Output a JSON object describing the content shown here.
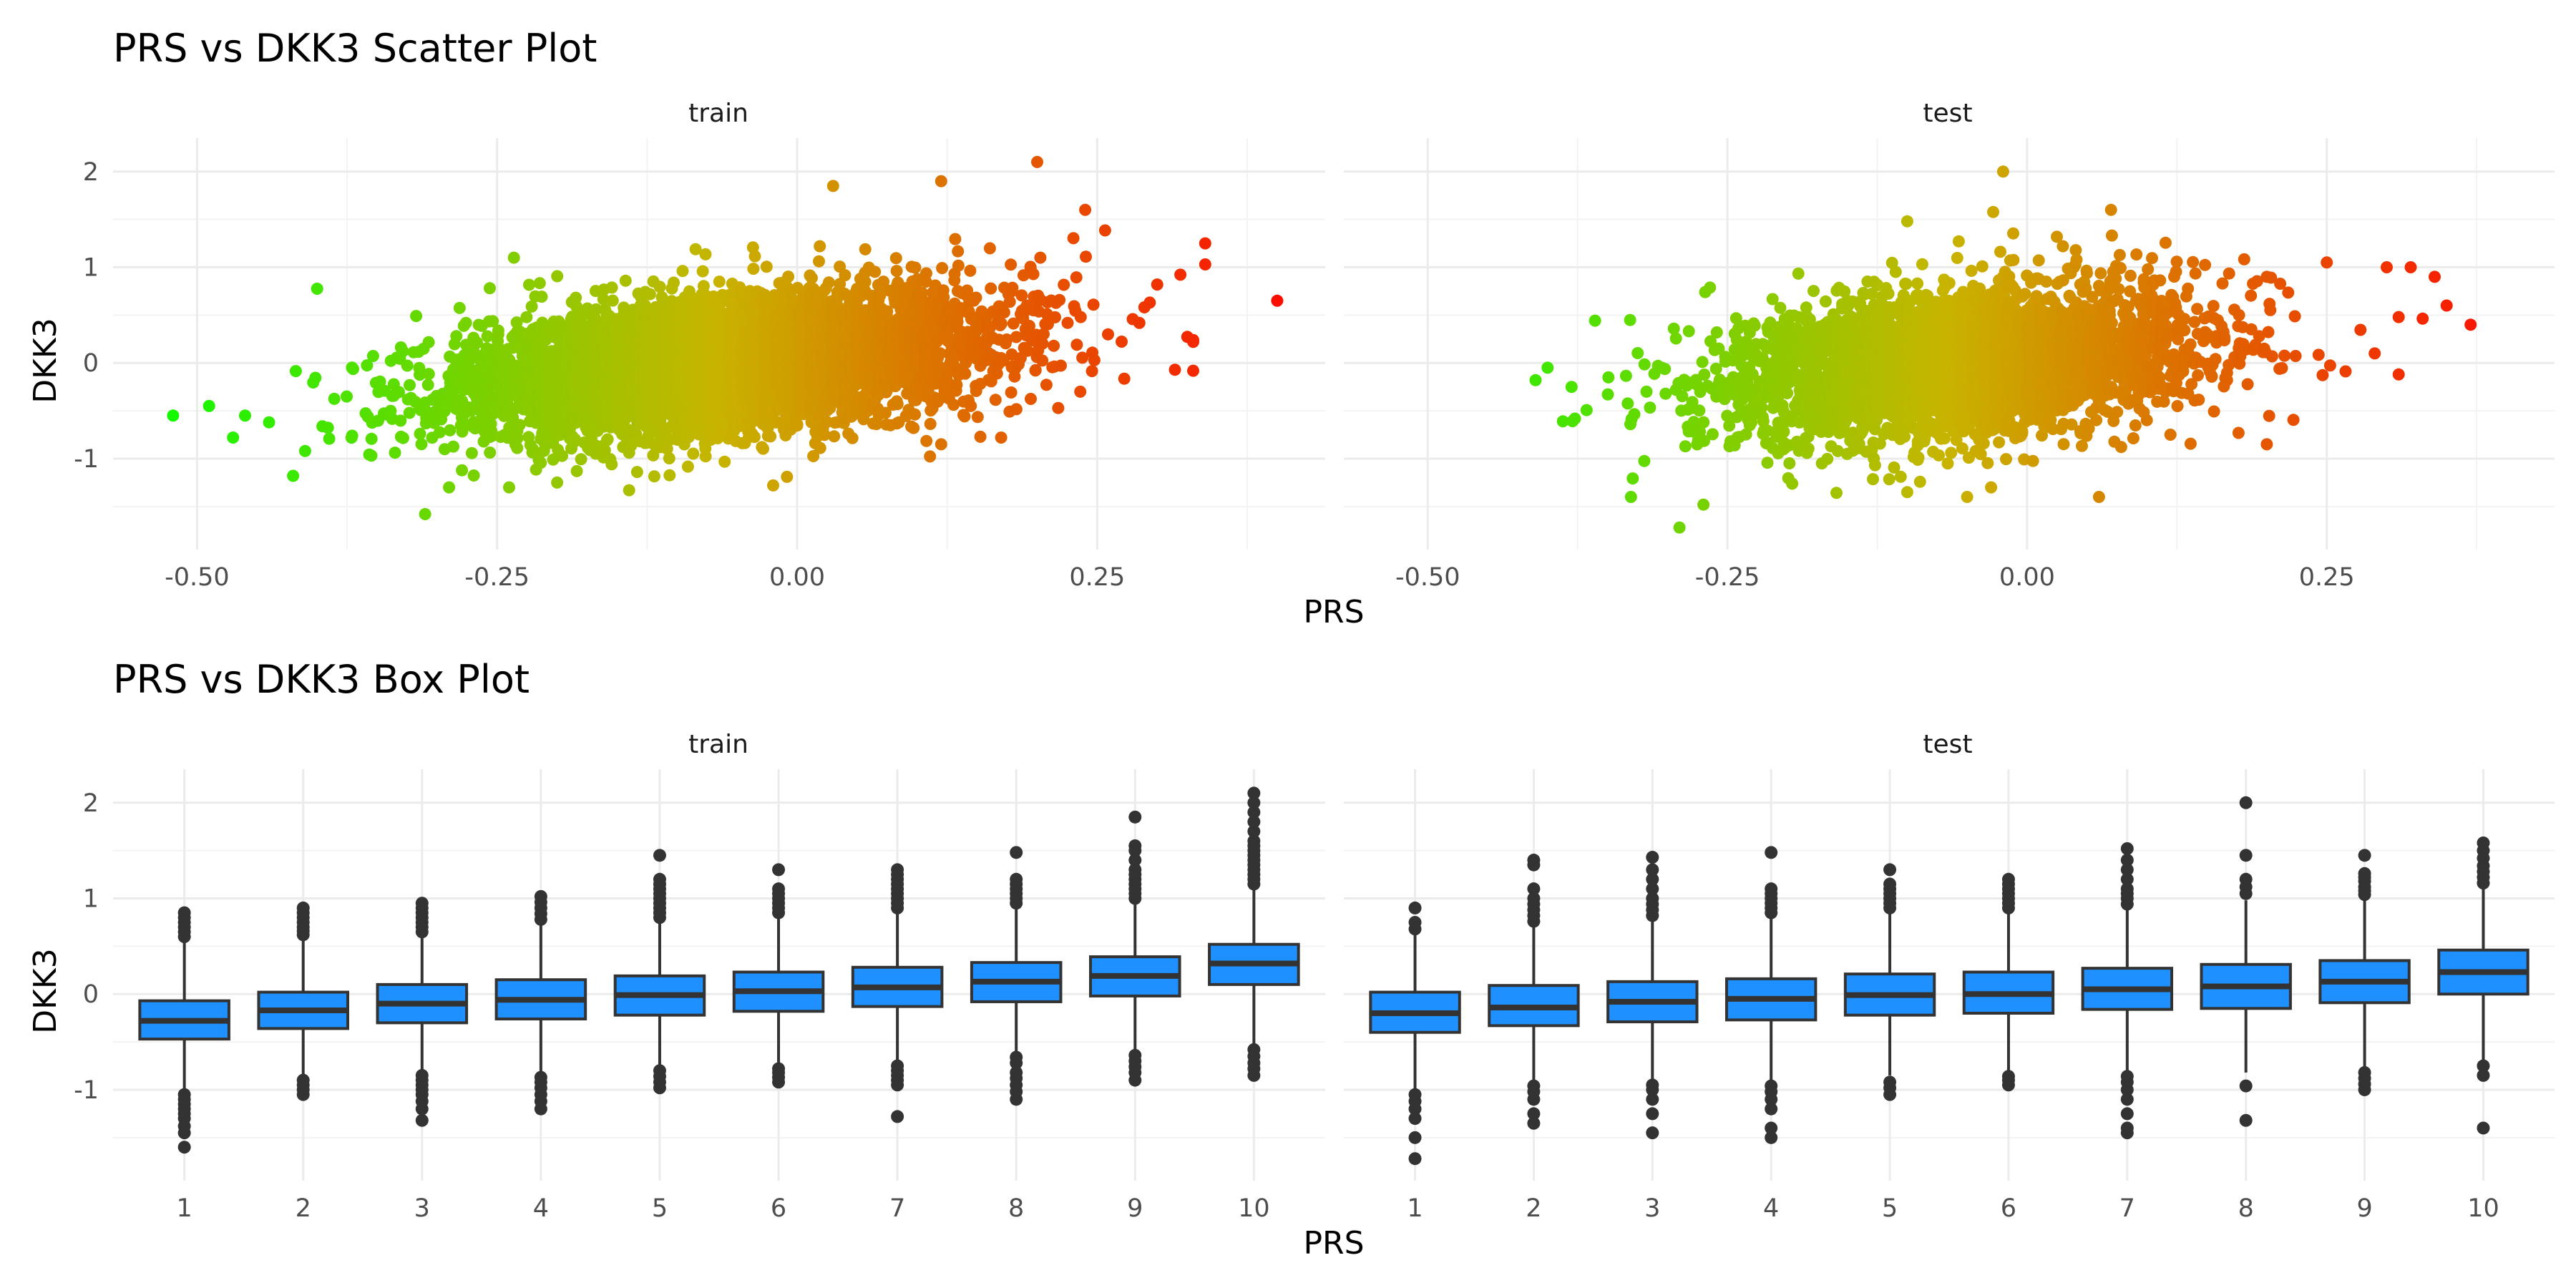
{
  "chart_data": [
    {
      "type": "scatter",
      "title": "PRS vs DKK3 Scatter Plot",
      "xlabel": "PRS",
      "ylabel": "DKK3",
      "xlim": [
        -0.57,
        0.44
      ],
      "ylim": [
        -1.95,
        2.35
      ],
      "x_ticks": [
        -0.5,
        -0.25,
        0.0,
        0.25
      ],
      "x_tick_labels": [
        "-0.50",
        "-0.25",
        "0.00",
        "0.25"
      ],
      "y_ticks": [
        -1,
        0,
        1,
        2
      ],
      "y_tick_labels": [
        "-1",
        "0",
        "1",
        "2"
      ],
      "grid": true,
      "color_scale": {
        "low": "#00ff00",
        "mid": "#c8b400",
        "high": "#ff0000",
        "by": "PRS"
      },
      "facets": [
        {
          "label": "train",
          "cloud": {
            "n": 5200,
            "x_mean": -0.06,
            "x_sd": 0.11,
            "slope": 2.2,
            "resid_sd": 0.35,
            "seed": 11
          },
          "points": [
            {
              "x": -0.52,
              "y": -0.55
            },
            {
              "x": -0.49,
              "y": -0.45
            },
            {
              "x": -0.46,
              "y": -0.55
            },
            {
              "x": -0.47,
              "y": -0.78
            },
            {
              "x": -0.44,
              "y": -0.62
            },
            {
              "x": -0.41,
              "y": -0.92
            },
            {
              "x": -0.42,
              "y": -1.18
            },
            {
              "x": -0.31,
              "y": -1.58
            },
            {
              "x": -0.29,
              "y": -1.3
            },
            {
              "x": -0.02,
              "y": -1.28
            },
            {
              "x": 0.03,
              "y": 1.85
            },
            {
              "x": 0.12,
              "y": 1.9
            },
            {
              "x": 0.2,
              "y": 2.1
            },
            {
              "x": 0.24,
              "y": 1.6
            },
            {
              "x": 0.3,
              "y": 0.82
            },
            {
              "x": 0.34,
              "y": 1.25
            },
            {
              "x": 0.34,
              "y": 1.03
            },
            {
              "x": 0.33,
              "y": 0.22
            },
            {
              "x": 0.4,
              "y": 0.65
            },
            {
              "x": 0.12,
              "y": -0.85
            },
            {
              "x": 0.17,
              "y": -0.78
            },
            {
              "x": -0.24,
              "y": -1.3
            },
            {
              "x": -0.2,
              "y": -1.25
            },
            {
              "x": -0.14,
              "y": -1.33
            }
          ]
        },
        {
          "label": "test",
          "cloud": {
            "n": 3400,
            "x_mean": -0.06,
            "x_sd": 0.1,
            "slope": 2.0,
            "resid_sd": 0.38,
            "seed": 29
          },
          "points": [
            {
              "x": -0.41,
              "y": -0.18
            },
            {
              "x": -0.4,
              "y": -0.05
            },
            {
              "x": -0.38,
              "y": -0.25
            },
            {
              "x": -0.29,
              "y": -1.72
            },
            {
              "x": -0.27,
              "y": -1.48
            },
            {
              "x": -0.02,
              "y": 2.0
            },
            {
              "x": -0.1,
              "y": 1.48
            },
            {
              "x": 0.07,
              "y": 1.6
            },
            {
              "x": 0.2,
              "y": 0.9
            },
            {
              "x": 0.25,
              "y": 1.05
            },
            {
              "x": 0.3,
              "y": 1.0
            },
            {
              "x": 0.32,
              "y": 1.0
            },
            {
              "x": 0.34,
              "y": 0.9
            },
            {
              "x": 0.35,
              "y": 0.6
            },
            {
              "x": 0.37,
              "y": 0.4
            },
            {
              "x": 0.31,
              "y": 0.48
            },
            {
              "x": 0.29,
              "y": 0.1
            },
            {
              "x": 0.31,
              "y": -0.12
            },
            {
              "x": 0.06,
              "y": -1.4
            },
            {
              "x": 0.2,
              "y": -0.85
            },
            {
              "x": -0.1,
              "y": -1.35
            },
            {
              "x": -0.05,
              "y": -1.4
            },
            {
              "x": -0.03,
              "y": -1.3
            }
          ]
        }
      ]
    },
    {
      "type": "box",
      "title": "PRS vs DKK3 Box Plot",
      "xlabel": "PRS",
      "ylabel": "DKK3",
      "categories": [
        "1",
        "2",
        "3",
        "4",
        "5",
        "6",
        "7",
        "8",
        "9",
        "10"
      ],
      "ylim": [
        -1.95,
        2.35
      ],
      "y_ticks": [
        -1,
        0,
        1,
        2
      ],
      "y_tick_labels": [
        "-1",
        "0",
        "1",
        "2"
      ],
      "grid": true,
      "box_fill": "#1e90ff",
      "box_stroke": "#333333",
      "facets": [
        {
          "label": "train",
          "boxes": [
            {
              "q1": -0.47,
              "median": -0.28,
              "q3": -0.07,
              "whisker_low": -1.0,
              "whisker_high": 0.55,
              "outliers": [
                -1.6,
                -1.45,
                -1.38,
                -1.3,
                -1.25,
                -1.2,
                -1.15,
                -1.1,
                -1.05,
                0.6,
                0.65,
                0.7,
                0.75,
                0.8,
                0.85
              ]
            },
            {
              "q1": -0.36,
              "median": -0.17,
              "q3": 0.02,
              "whisker_low": -0.88,
              "whisker_high": 0.6,
              "outliers": [
                -1.05,
                -1.0,
                -0.95,
                -0.9,
                0.62,
                0.66,
                0.7,
                0.75,
                0.8,
                0.85,
                0.9
              ]
            },
            {
              "q1": -0.3,
              "median": -0.1,
              "q3": 0.1,
              "whisker_low": -0.82,
              "whisker_high": 0.62,
              "outliers": [
                -1.32,
                -1.2,
                -1.12,
                -1.05,
                -1.0,
                -0.95,
                -0.9,
                -0.85,
                0.65,
                0.7,
                0.75,
                0.8,
                0.85,
                0.9,
                0.95
              ]
            },
            {
              "q1": -0.26,
              "median": -0.06,
              "q3": 0.15,
              "whisker_low": -0.85,
              "whisker_high": 0.74,
              "outliers": [
                -1.2,
                -1.12,
                -1.05,
                -0.98,
                -0.92,
                -0.87,
                0.78,
                0.84,
                0.9,
                0.96,
                1.02
              ]
            },
            {
              "q1": -0.22,
              "median": -0.01,
              "q3": 0.19,
              "whisker_low": -0.75,
              "whisker_high": 0.78,
              "outliers": [
                -0.98,
                -0.92,
                -0.86,
                -0.8,
                0.8,
                0.85,
                0.9,
                0.95,
                1.0,
                1.05,
                1.1,
                1.15,
                1.2,
                1.45
              ]
            },
            {
              "q1": -0.18,
              "median": 0.03,
              "q3": 0.23,
              "whisker_low": -0.75,
              "whisker_high": 0.82,
              "outliers": [
                -0.92,
                -0.87,
                -0.82,
                -0.78,
                0.85,
                0.9,
                0.95,
                1.0,
                1.05,
                1.1,
                1.3
              ]
            },
            {
              "q1": -0.13,
              "median": 0.07,
              "q3": 0.28,
              "whisker_low": -0.7,
              "whisker_high": 0.88,
              "outliers": [
                -1.28,
                -0.95,
                -0.9,
                -0.85,
                -0.8,
                -0.75,
                0.9,
                0.95,
                1.0,
                1.05,
                1.1,
                1.15,
                1.2,
                1.25,
                1.3
              ]
            },
            {
              "q1": -0.08,
              "median": 0.13,
              "q3": 0.33,
              "whisker_low": -0.62,
              "whisker_high": 0.92,
              "outliers": [
                -1.1,
                -1.02,
                -0.95,
                -0.88,
                -0.82,
                -0.72,
                -0.66,
                0.95,
                1.0,
                1.05,
                1.1,
                1.15,
                1.2,
                1.48
              ]
            },
            {
              "q1": -0.02,
              "median": 0.19,
              "q3": 0.39,
              "whisker_low": -0.58,
              "whisker_high": 0.98,
              "outliers": [
                -0.9,
                -0.82,
                -0.76,
                -0.7,
                -0.64,
                1.0,
                1.05,
                1.1,
                1.15,
                1.2,
                1.25,
                1.3,
                1.4,
                1.5,
                1.55,
                1.85
              ]
            },
            {
              "q1": 0.1,
              "median": 0.32,
              "q3": 0.52,
              "whisker_low": -0.52,
              "whisker_high": 1.1,
              "outliers": [
                -0.85,
                -0.78,
                -0.72,
                -0.65,
                -0.58,
                1.15,
                1.2,
                1.25,
                1.3,
                1.35,
                1.4,
                1.45,
                1.5,
                1.55,
                1.6,
                1.7,
                1.8,
                1.9,
                2.0,
                2.1
              ]
            }
          ]
        },
        {
          "label": "test",
          "boxes": [
            {
              "q1": -0.4,
              "median": -0.2,
              "q3": 0.02,
              "whisker_low": -1.0,
              "whisker_high": 0.62,
              "outliers": [
                -1.72,
                -1.5,
                -1.3,
                -1.2,
                -1.12,
                -1.05,
                0.68,
                0.75,
                0.9
              ]
            },
            {
              "q1": -0.33,
              "median": -0.14,
              "q3": 0.09,
              "whisker_low": -0.92,
              "whisker_high": 0.72,
              "outliers": [
                -1.35,
                -1.25,
                -1.1,
                -1.02,
                -0.96,
                0.76,
                0.82,
                0.88,
                0.94,
                1.0,
                1.1,
                1.35,
                1.4
              ]
            },
            {
              "q1": -0.29,
              "median": -0.08,
              "q3": 0.13,
              "whisker_low": -0.9,
              "whisker_high": 0.78,
              "outliers": [
                -1.45,
                -1.25,
                -1.1,
                -1.0,
                -0.95,
                0.82,
                0.88,
                0.94,
                1.0,
                1.1,
                1.2,
                1.3,
                1.43
              ]
            },
            {
              "q1": -0.27,
              "median": -0.05,
              "q3": 0.16,
              "whisker_low": -0.92,
              "whisker_high": 0.82,
              "outliers": [
                -1.5,
                -1.4,
                -1.2,
                -1.1,
                -1.02,
                -0.96,
                0.85,
                0.9,
                0.95,
                1.0,
                1.05,
                1.1,
                1.48
              ]
            },
            {
              "q1": -0.22,
              "median": -0.01,
              "q3": 0.21,
              "whisker_low": -0.85,
              "whisker_high": 0.86,
              "outliers": [
                -1.05,
                -0.98,
                -0.92,
                0.9,
                0.95,
                1.0,
                1.05,
                1.1,
                1.15,
                1.3
              ]
            },
            {
              "q1": -0.2,
              "median": 0.0,
              "q3": 0.23,
              "whisker_low": -0.84,
              "whisker_high": 0.88,
              "outliers": [
                -0.95,
                -0.9,
                -0.86,
                0.9,
                0.95,
                1.0,
                1.05,
                1.1,
                1.15,
                1.2
              ]
            },
            {
              "q1": -0.16,
              "median": 0.05,
              "q3": 0.27,
              "whisker_low": -0.82,
              "whisker_high": 0.9,
              "outliers": [
                -1.45,
                -1.4,
                -1.25,
                -1.1,
                -1.0,
                -0.92,
                -0.86,
                0.94,
                1.0,
                1.05,
                1.1,
                1.2,
                1.3,
                1.4,
                1.52
              ]
            },
            {
              "q1": -0.15,
              "median": 0.08,
              "q3": 0.31,
              "whisker_low": -0.82,
              "whisker_high": 0.98,
              "outliers": [
                -1.32,
                -0.96,
                1.05,
                1.12,
                1.2,
                1.45,
                2.0
              ]
            },
            {
              "q1": -0.09,
              "median": 0.13,
              "q3": 0.35,
              "whisker_low": -0.78,
              "whisker_high": 1.0,
              "outliers": [
                -1.0,
                -0.94,
                -0.88,
                -0.82,
                1.04,
                1.08,
                1.12,
                1.18,
                1.22,
                1.26,
                1.45
              ]
            },
            {
              "q1": 0.0,
              "median": 0.23,
              "q3": 0.46,
              "whisker_low": -0.7,
              "whisker_high": 1.12,
              "outliers": [
                -1.4,
                -0.85,
                -0.75,
                1.16,
                1.22,
                1.28,
                1.34,
                1.42,
                1.5,
                1.58
              ]
            }
          ]
        }
      ]
    }
  ]
}
